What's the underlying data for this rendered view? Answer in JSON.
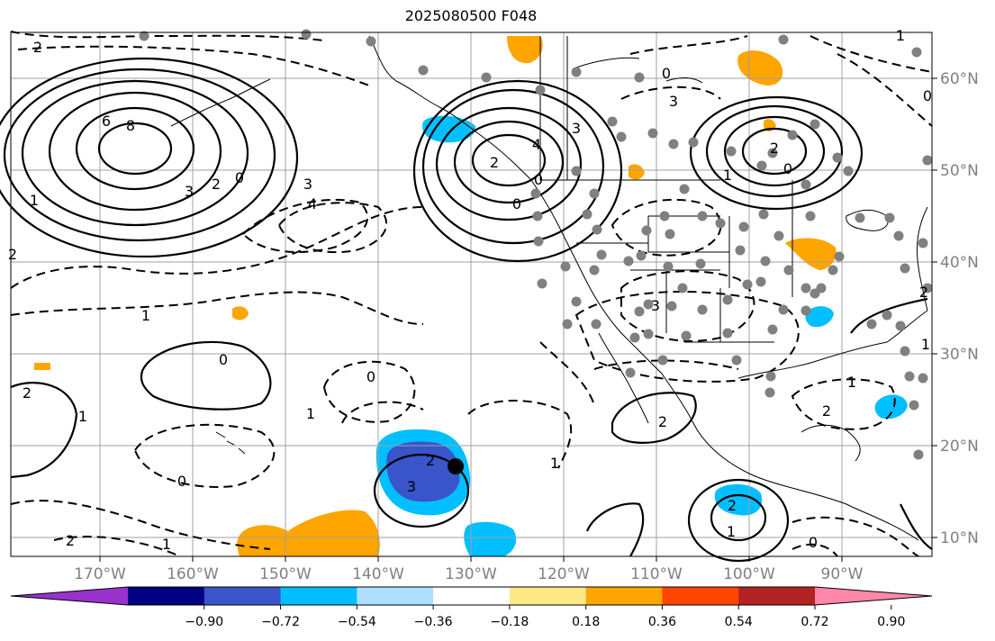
{
  "title": "2025080500 F048",
  "map": {
    "lon_labels": [
      "170°W",
      "160°W",
      "150°W",
      "140°W",
      "130°W",
      "120°W",
      "110°W",
      "100°W",
      "90°W"
    ],
    "lat_labels": [
      "60°N",
      "50°N",
      "40°N",
      "30°N",
      "20°N",
      "10°N"
    ],
    "contour_labels": [
      "2",
      "1",
      "6",
      "8",
      "3",
      "2",
      "0",
      "3",
      "4",
      "2",
      "1",
      "0",
      "2",
      "1",
      "0",
      "1",
      "2",
      "0",
      "1",
      "2",
      "3",
      "2",
      "0",
      "4",
      "3",
      "0",
      "3",
      "2",
      "1",
      "0",
      "1",
      "2",
      "2",
      "0",
      "1",
      "3",
      "0",
      "1",
      "2",
      "1",
      "0",
      "1",
      "2"
    ],
    "colors": {
      "blue_dark": "#3a54c9",
      "blue_mid": "#00bfff",
      "blue_light": "#afe1ff",
      "orange": "#ffa500",
      "land_border": "#000000",
      "grid": "#a0a0a0",
      "dots": "#808080"
    }
  },
  "colorbar": {
    "ticks": [
      "−0.90",
      "−0.72",
      "−0.54",
      "−0.36",
      "−0.18",
      "0.18",
      "0.36",
      "0.54",
      "0.72",
      "0.90"
    ],
    "colors": [
      "#9932cc",
      "#000080",
      "#3a54c9",
      "#00bfff",
      "#afe1ff",
      "#ffffff",
      "#ffe888",
      "#ffa500",
      "#ff4500",
      "#b22222",
      "#ff88aa"
    ]
  }
}
